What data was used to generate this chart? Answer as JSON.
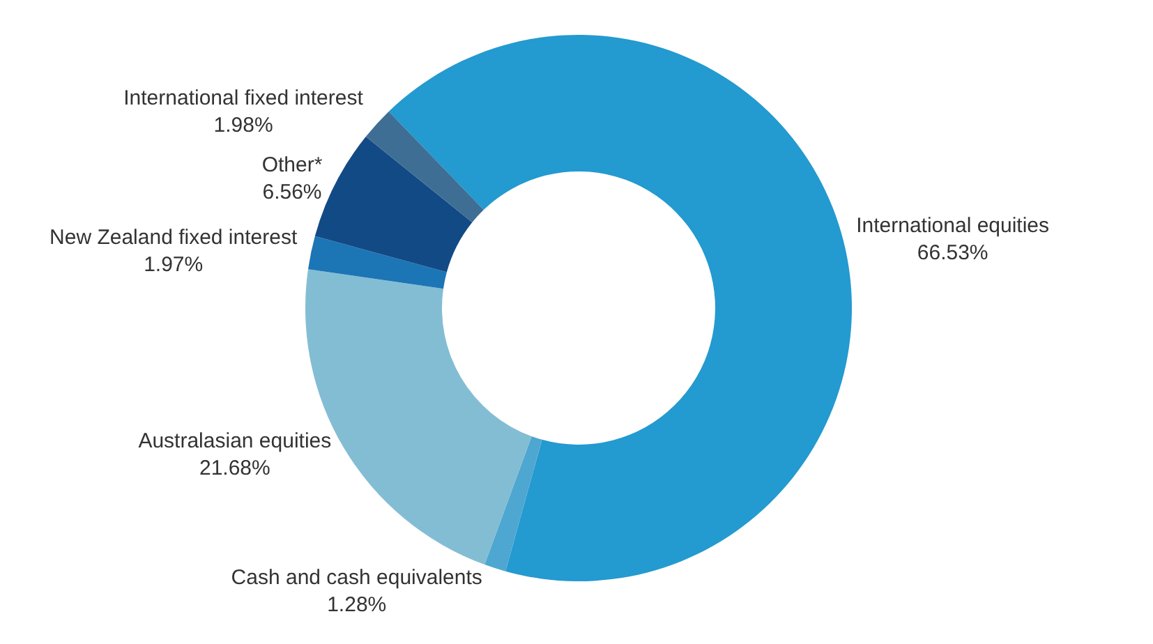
{
  "chart_data": {
    "type": "donut",
    "categories": [
      "International equities",
      "Cash and cash equivalents",
      "Australasian equities",
      "New Zealand fixed interest",
      "Other*",
      "International fixed interest"
    ],
    "values": [
      66.53,
      1.28,
      21.68,
      1.97,
      6.56,
      1.98
    ],
    "value_labels": [
      "66.53%",
      "1.28%",
      "21.68%",
      "1.97%",
      "6.56%",
      "1.98%"
    ],
    "colors": [
      "#239ad0",
      "#4ea7d0",
      "#83bdd4",
      "#1c75b5",
      "#124a86",
      "#3f6e95"
    ],
    "legend": false
  }
}
